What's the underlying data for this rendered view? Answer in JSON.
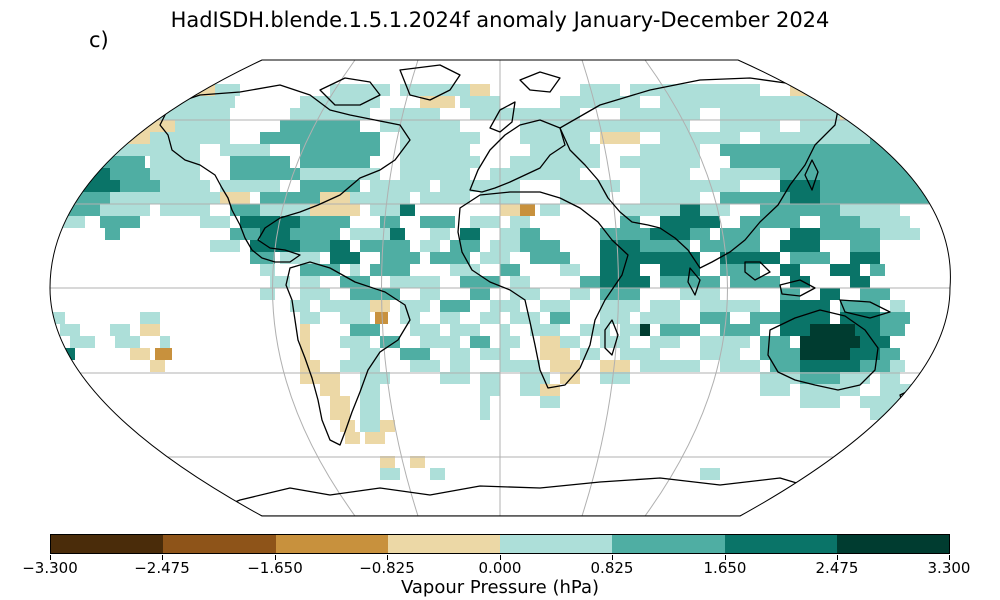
{
  "title": "HadISDH.blende.1.5.1.2024f anomaly January-December 2024",
  "panel_label": "c)",
  "colorbar": {
    "label": "Vapour Pressure (hPa)",
    "ticks": [
      "−3.300",
      "−2.475",
      "−1.650",
      "−0.825",
      "0.000",
      "0.825",
      "1.650",
      "2.475",
      "3.300"
    ],
    "colors": [
      "#4a2c0a",
      "#8e5419",
      "#c8913d",
      "#ecd8a6",
      "#addfd9",
      "#4faea3",
      "#0a7468",
      "#003c30"
    ]
  },
  "map": {
    "projection": "Robinson",
    "background": "#ffffff",
    "graticule_color": "#b0b0b0",
    "coastline_color": "#000000"
  }
}
